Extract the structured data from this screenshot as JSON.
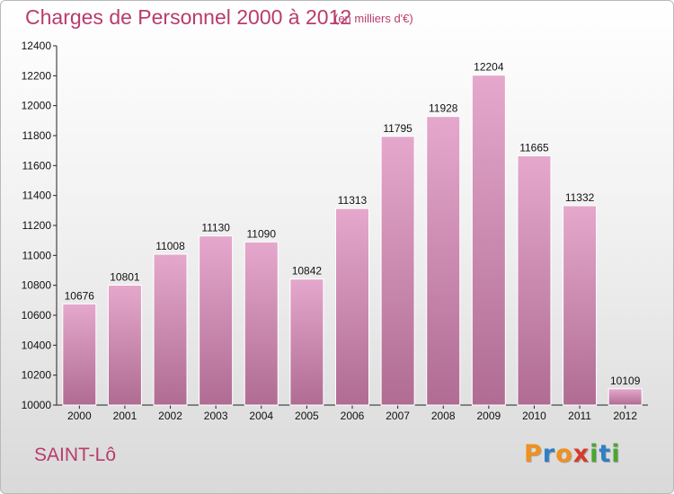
{
  "title": "Charges de Personnel 2000 à 2012",
  "unit": "(en milliers d'€)",
  "city": "SAINT-Lô",
  "logo": {
    "text": "Proxiti",
    "letters": [
      {
        "ch": "P",
        "color": "#f0901e"
      },
      {
        "ch": "r",
        "color": "#2f7fc4"
      },
      {
        "ch": "o",
        "color": "#f0901e"
      },
      {
        "ch": "x",
        "color": "#d63a2a"
      },
      {
        "ch": "i",
        "color": "#4aa534"
      },
      {
        "ch": "t",
        "color": "#2f7fc4"
      },
      {
        "ch": "i",
        "color": "#4aa534"
      }
    ]
  },
  "colors": {
    "bar_top": "#e5a8cc",
    "bar_bottom": "#b06c93",
    "bar_border": "#ffffff",
    "text_accent": "#b83c6c"
  },
  "chart_data": {
    "type": "bar",
    "title": "Charges de Personnel 2000 à 2012",
    "subtitle": "(en milliers d'€)",
    "xlabel": "",
    "ylabel": "",
    "categories": [
      "2000",
      "2001",
      "2002",
      "2003",
      "2004",
      "2005",
      "2006",
      "2007",
      "2008",
      "2009",
      "2010",
      "2011",
      "2012"
    ],
    "values": [
      10676,
      10801,
      11008,
      11130,
      11090,
      10842,
      11313,
      11795,
      11928,
      12204,
      11665,
      11332,
      10109
    ],
    "ylim": [
      10000,
      12400
    ],
    "yticks": [
      10000,
      10200,
      10400,
      10600,
      10800,
      11000,
      11200,
      11400,
      11600,
      11800,
      12000,
      12200,
      12400
    ],
    "grid": false,
    "legend": "none"
  }
}
